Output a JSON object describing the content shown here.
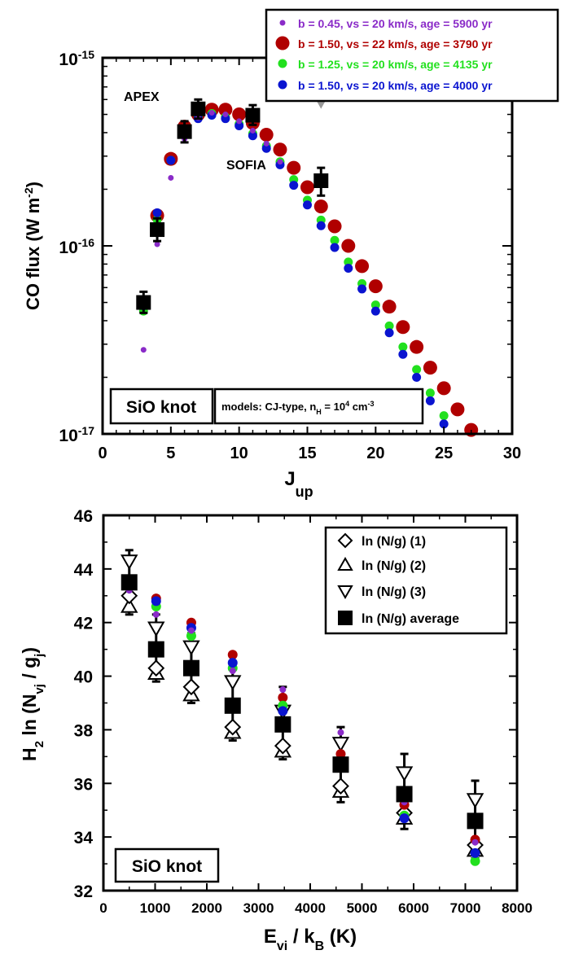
{
  "colors": {
    "purple": "#8a2bc8",
    "red": "#b00000",
    "green": "#22e01e",
    "blue": "#0a14d0",
    "gray": "#999999",
    "black": "#000000"
  },
  "chart_data": [
    {
      "type": "scatter",
      "y_scale": "log",
      "xlim": [
        0,
        30
      ],
      "ylim": [
        1e-17,
        1e-15
      ],
      "x_ticks": [
        0,
        5,
        10,
        15,
        20,
        25,
        30
      ],
      "x_tick_labels": [
        "0",
        "5",
        "10",
        "15",
        "20",
        "25",
        "30"
      ],
      "y_tick_labels": [
        {
          "value": 1e-15,
          "base": "10",
          "exp": "-15"
        },
        {
          "value": 1e-16,
          "base": "10",
          "exp": "-16"
        },
        {
          "value": 1e-17,
          "base": "10",
          "exp": "-17"
        }
      ],
      "xlabel": {
        "main": "J",
        "sub": "up"
      },
      "ylabel": {
        "pre": "CO flux  (W m",
        "sup": "-2",
        "post": ")"
      },
      "legend_position": "top-right",
      "annotations": {
        "apex": "APEX",
        "sofia": "SOFIA",
        "knot": "SiO knot",
        "model": {
          "pre": "models: CJ-type, n",
          "sub": "H",
          "mid": " = 10",
          "sup": "4",
          "post": " cm",
          "sup2": "-3"
        }
      },
      "series": [
        {
          "name": "b = 0.45, vs = 20 km/s, age = 5900 yr",
          "color": "purple",
          "size": "small",
          "x": [
            3,
            4,
            5,
            6,
            7,
            8,
            9,
            10,
            11,
            12,
            13
          ],
          "y": [
            2.8e-17,
            1.02e-16,
            2.3e-16,
            3.7e-16,
            4.8e-16,
            5.1e-16,
            5e-16,
            4.6e-16,
            4.1e-16,
            3.5e-16,
            2.8e-16
          ]
        },
        {
          "name": "b = 1.50, vs = 22 km/s, age = 3790 yr",
          "color": "red",
          "size": "large",
          "x": [
            3,
            4,
            5,
            6,
            7,
            8,
            9,
            10,
            11,
            12,
            13,
            14,
            15,
            16,
            17,
            18,
            19,
            20,
            21,
            22,
            23,
            24,
            25,
            26,
            27
          ],
          "y": [
            5e-17,
            1.45e-16,
            2.9e-16,
            4.3e-16,
            5e-16,
            5.3e-16,
            5.3e-16,
            5e-16,
            4.5e-16,
            3.9e-16,
            3.25e-16,
            2.6e-16,
            2.05e-16,
            1.62e-16,
            1.27e-16,
            1e-16,
            7.8e-17,
            6.1e-17,
            4.75e-17,
            3.7e-17,
            2.9e-17,
            2.25e-17,
            1.75e-17,
            1.35e-17,
            1.05e-17
          ]
        },
        {
          "name": "b = 1.25, vs = 20 km/s, age = 4135 yr",
          "color": "green",
          "size": "medium",
          "x": [
            3,
            4,
            5,
            6,
            7,
            8,
            9,
            10,
            11,
            12,
            13,
            14,
            15,
            16,
            17,
            18,
            19,
            20,
            21,
            22,
            23,
            24,
            25
          ],
          "y": [
            4.5e-17,
            1.38e-16,
            2.85e-16,
            4.1e-16,
            4.85e-16,
            5.05e-16,
            4.85e-16,
            4.45e-16,
            3.95e-16,
            3.4e-16,
            2.8e-16,
            2.25e-16,
            1.75e-16,
            1.37e-16,
            1.07e-16,
            8.2e-17,
            6.3e-17,
            4.85e-17,
            3.75e-17,
            2.9e-17,
            2.2e-17,
            1.65e-17,
            1.25e-17
          ]
        },
        {
          "name": "b = 1.50, vs = 20 km/s, age = 4000 yr",
          "color": "blue",
          "size": "medium",
          "x": [
            3,
            4,
            5,
            6,
            7,
            8,
            9,
            10,
            11,
            12,
            13,
            14,
            15,
            16,
            17,
            18,
            19,
            20,
            21,
            22,
            23,
            24,
            25
          ],
          "y": [
            4.8e-17,
            1.5e-16,
            2.85e-16,
            4.05e-16,
            4.75e-16,
            4.95e-16,
            4.75e-16,
            4.35e-16,
            3.85e-16,
            3.3e-16,
            2.7e-16,
            2.1e-16,
            1.65e-16,
            1.28e-16,
            9.8e-17,
            7.6e-17,
            5.9e-17,
            4.5e-17,
            3.45e-17,
            2.65e-17,
            2e-17,
            1.5e-17,
            1.13e-17
          ]
        }
      ],
      "observations": [
        {
          "x": 3,
          "y": 5e-17,
          "err_lo": 4.4e-17,
          "err_hi": 5.7e-17
        },
        {
          "x": 4,
          "y": 1.22e-16,
          "err_lo": 1.06e-16,
          "err_hi": 1.4e-16
        },
        {
          "x": 6,
          "y": 4.05e-16,
          "err_lo": 3.55e-16,
          "err_hi": 4.6e-16
        },
        {
          "x": 7,
          "y": 5.35e-16,
          "err_lo": 4.75e-16,
          "err_hi": 6e-16
        },
        {
          "x": 11,
          "y": 4.95e-16,
          "err_lo": 4.4e-16,
          "err_hi": 5.6e-16
        },
        {
          "x": 16,
          "y": 2.22e-16,
          "err_lo": 1.85e-16,
          "err_hi": 2.6e-16
        }
      ],
      "upper_limit": {
        "x": 16,
        "y": 5.8e-16
      }
    },
    {
      "type": "scatter",
      "xlim": [
        0,
        8000
      ],
      "ylim": [
        32,
        46
      ],
      "x_ticks": [
        0,
        1000,
        2000,
        3000,
        4000,
        5000,
        6000,
        7000,
        8000
      ],
      "x_tick_labels": [
        "0",
        "1000",
        "2000",
        "3000",
        "4000",
        "5000",
        "6000",
        "7000",
        "8000"
      ],
      "y_ticks": [
        32,
        34,
        36,
        38,
        40,
        42,
        44,
        46
      ],
      "y_tick_labels": [
        "32",
        "34",
        "36",
        "38",
        "40",
        "42",
        "44",
        "46"
      ],
      "xlabel": {
        "pre": "E",
        "sub1": "vi",
        "mid": " / k",
        "sub2": "B",
        "post": " (K)"
      },
      "ylabel": {
        "pre": "H",
        "sub1": "2",
        "mid": " ln (N",
        "sub2": "vj",
        "mid2": " / g",
        "sub3": "j",
        "post": ")"
      },
      "legend_position": "top-right",
      "annotations": {
        "knot": "SiO knot"
      },
      "legend": [
        {
          "marker": "diamond",
          "label": "ln (N/g) (1)"
        },
        {
          "marker": "triangle-up",
          "label": "ln (N/g) (2)"
        },
        {
          "marker": "triangle-down",
          "label": "ln (N/g) (3)"
        },
        {
          "marker": "square",
          "label": "ln (N/g) average"
        }
      ],
      "x": [
        500,
        1020,
        1700,
        2500,
        3470,
        4590,
        5820,
        7190
      ],
      "obs": {
        "diamond": [
          43.0,
          40.3,
          39.6,
          38.1,
          37.4,
          35.9,
          34.9,
          33.7
        ],
        "triangle_up": [
          42.6,
          40.1,
          39.3,
          37.9,
          37.2,
          35.7,
          34.7,
          33.5
        ],
        "triangle_down": [
          44.3,
          41.8,
          41.1,
          39.8,
          38.7,
          37.5,
          36.4,
          35.4
        ],
        "average": [
          43.5,
          41.0,
          40.3,
          38.9,
          38.2,
          36.7,
          35.6,
          34.6
        ],
        "err_lo": [
          42.3,
          39.8,
          39.0,
          37.6,
          36.9,
          35.3,
          34.3,
          33.2
        ],
        "err_hi": [
          44.7,
          42.3,
          41.6,
          40.3,
          39.6,
          38.1,
          37.1,
          36.1
        ]
      },
      "models": [
        {
          "color": "purple",
          "size": "small",
          "y": [
            43.2,
            42.3,
            41.7,
            40.2,
            39.5,
            37.9,
            35.3,
            33.8
          ]
        },
        {
          "color": "red",
          "size": "medium",
          "y": [
            43.6,
            42.9,
            42.0,
            40.8,
            39.2,
            37.1,
            35.2,
            33.9
          ]
        },
        {
          "color": "green",
          "size": "medium",
          "y": [
            43.6,
            42.6,
            41.5,
            40.3,
            38.9,
            36.8,
            34.8,
            33.1
          ]
        },
        {
          "color": "blue",
          "size": "medium",
          "y": [
            43.6,
            42.8,
            41.8,
            40.5,
            38.7,
            36.6,
            34.7,
            33.4
          ]
        }
      ]
    }
  ]
}
